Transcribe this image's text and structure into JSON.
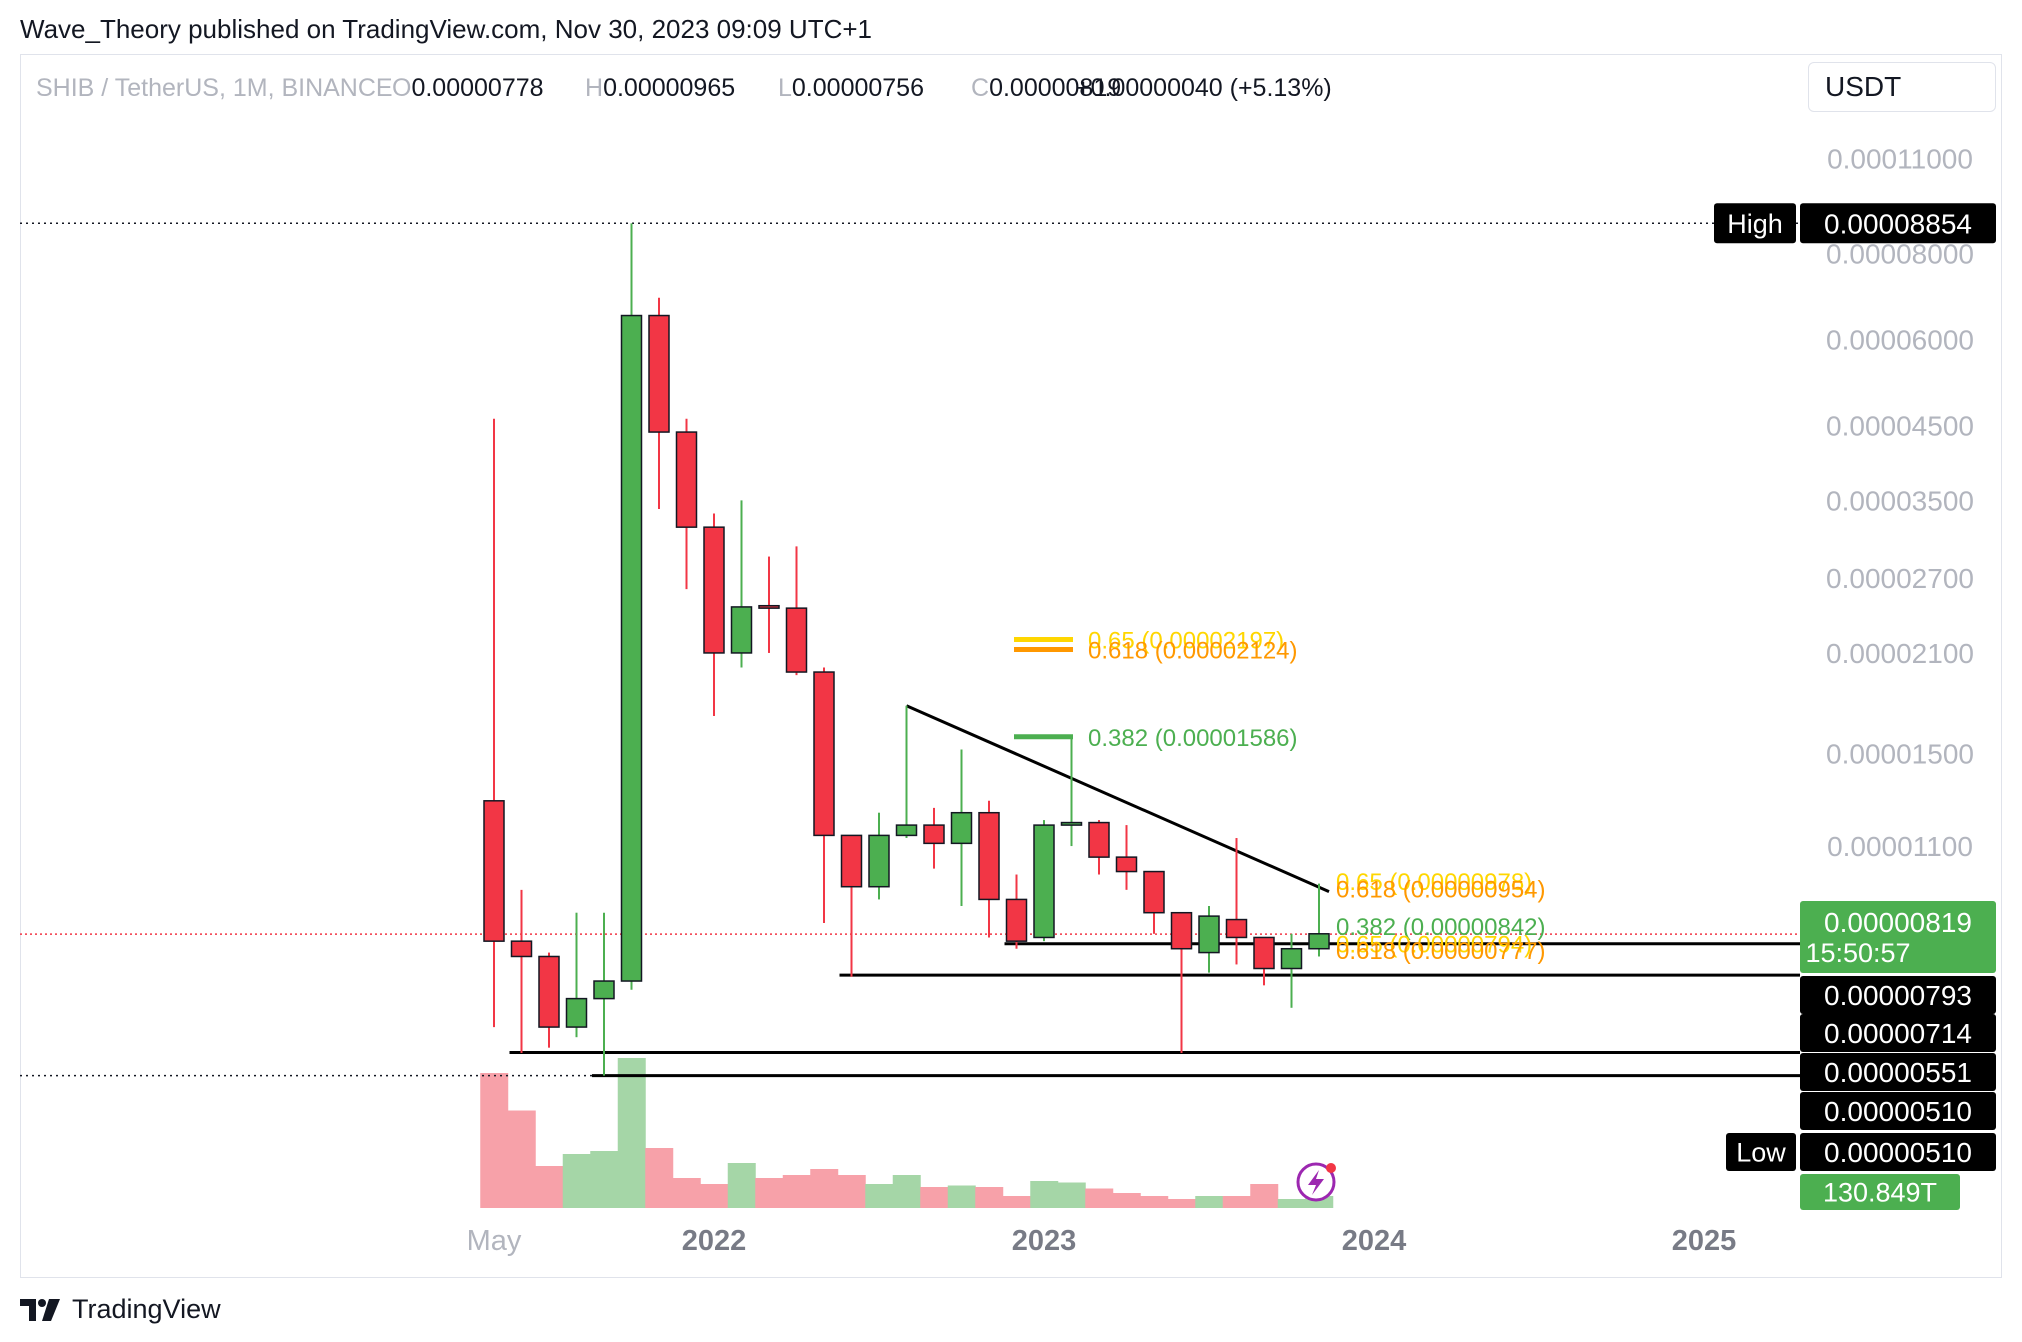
{
  "header": {
    "publisher_line": "Wave_Theory published on TradingView.com, Nov 30, 2023 09:09 UTC+1"
  },
  "legend": {
    "symbol": "SHIB / TetherUS, 1M, BINANCE",
    "o_label": "O",
    "o_value": "0.00000778",
    "h_label": "H",
    "h_value": "0.00000965",
    "l_label": "L",
    "l_value": "0.00000756",
    "c_label": "C",
    "c_value": "0.00000819",
    "change": "+0.00000040 (+5.13%)"
  },
  "currency": "USDT",
  "footer": {
    "brand": "TradingView"
  },
  "colors": {
    "up": "#4caf50",
    "down": "#f23645",
    "up_vol": "#a5d6a7",
    "down_vol": "#f7a1a9",
    "fib_yellow": "#ffd600",
    "fib_orange": "#ff9800",
    "fib_green": "#4caf50",
    "line": "#000000"
  },
  "chart_data": {
    "type": "candlestick",
    "price_scale": "log",
    "ylim": [
      4.7e-06,
      0.000117
    ],
    "y_ticks": [
      "0.00011000",
      "0.00008000",
      "0.00006000",
      "0.00004500",
      "0.00003500",
      "0.00002700",
      "0.00002100",
      "0.00001500",
      "0.00001100"
    ],
    "x_ticks": [
      {
        "label": "May",
        "date": "2021-05",
        "minor": true
      },
      {
        "label": "2022",
        "date": "2022-01"
      },
      {
        "label": "2023",
        "date": "2023-01"
      },
      {
        "label": "2024",
        "date": "2024-01"
      },
      {
        "label": "2025",
        "date": "2025-01"
      }
    ],
    "candles": [
      {
        "t": "2021-05",
        "o": 1.28e-05,
        "h": 4.6e-05,
        "l": 6e-06,
        "c": 8e-06
      },
      {
        "t": "2021-06",
        "o": 8e-06,
        "h": 9.5e-06,
        "l": 5.5e-06,
        "c": 7.6e-06
      },
      {
        "t": "2021-07",
        "o": 7.6e-06,
        "h": 7.7e-06,
        "l": 5.6e-06,
        "c": 6e-06
      },
      {
        "t": "2021-08",
        "o": 6e-06,
        "h": 8.8e-06,
        "l": 5.8e-06,
        "c": 6.6e-06
      },
      {
        "t": "2021-09",
        "o": 6.6e-06,
        "h": 8.8e-06,
        "l": 5.1e-06,
        "c": 7e-06
      },
      {
        "t": "2021-10",
        "o": 7e-06,
        "h": 8.85e-05,
        "l": 6.8e-06,
        "c": 6.5e-05
      },
      {
        "t": "2021-11",
        "o": 6.5e-05,
        "h": 6.9e-05,
        "l": 3.4e-05,
        "c": 4.4e-05
      },
      {
        "t": "2021-12",
        "o": 4.4e-05,
        "h": 4.6e-05,
        "l": 2.6e-05,
        "c": 3.2e-05
      },
      {
        "t": "2022-01",
        "o": 3.2e-05,
        "h": 3.35e-05,
        "l": 1.7e-05,
        "c": 2.1e-05
      },
      {
        "t": "2022-02",
        "o": 2.1e-05,
        "h": 3.5e-05,
        "l": 2e-05,
        "c": 2.45e-05
      },
      {
        "t": "2022-03",
        "o": 2.46e-05,
        "h": 2.9e-05,
        "l": 2.1e-05,
        "c": 2.44e-05
      },
      {
        "t": "2022-04",
        "o": 2.44e-05,
        "h": 3e-05,
        "l": 1.95e-05,
        "c": 1.97e-05
      },
      {
        "t": "2022-05",
        "o": 1.97e-05,
        "h": 2e-05,
        "l": 8.5e-06,
        "c": 1.14e-05
      },
      {
        "t": "2022-06",
        "o": 1.14e-05,
        "h": 1.14e-05,
        "l": 7.1e-06,
        "c": 9.6e-06
      },
      {
        "t": "2022-07",
        "o": 9.6e-06,
        "h": 1.23e-05,
        "l": 9.2e-06,
        "c": 1.14e-05
      },
      {
        "t": "2022-08",
        "o": 1.14e-05,
        "h": 1.76e-05,
        "l": 1.13e-05,
        "c": 1.18e-05
      },
      {
        "t": "2022-09",
        "o": 1.18e-05,
        "h": 1.25e-05,
        "l": 1.02e-05,
        "c": 1.11e-05
      },
      {
        "t": "2022-10",
        "o": 1.11e-05,
        "h": 1.52e-05,
        "l": 9e-06,
        "c": 1.23e-05
      },
      {
        "t": "2022-11",
        "o": 1.23e-05,
        "h": 1.28e-05,
        "l": 8.1e-06,
        "c": 9.2e-06
      },
      {
        "t": "2022-12",
        "o": 9.2e-06,
        "h": 1e-05,
        "l": 7.8e-06,
        "c": 8e-06
      },
      {
        "t": "2023-01",
        "o": 8.1e-06,
        "h": 1.2e-05,
        "l": 8e-06,
        "c": 1.18e-05
      },
      {
        "t": "2023-02",
        "o": 1.18e-05,
        "h": 1.59e-05,
        "l": 1.1e-05,
        "c": 1.19e-05
      },
      {
        "t": "2023-03",
        "o": 1.19e-05,
        "h": 1.2e-05,
        "l": 1e-05,
        "c": 1.06e-05
      },
      {
        "t": "2023-04",
        "o": 1.06e-05,
        "h": 1.18e-05,
        "l": 9.5e-06,
        "c": 1.01e-05
      },
      {
        "t": "2023-05",
        "o": 1.01e-05,
        "h": 1.01e-05,
        "l": 8.2e-06,
        "c": 8.8e-06
      },
      {
        "t": "2023-06",
        "o": 8.8e-06,
        "h": 8.8e-06,
        "l": 5.5e-06,
        "c": 7.8e-06
      },
      {
        "t": "2023-07",
        "o": 7.7e-06,
        "h": 9e-06,
        "l": 7.2e-06,
        "c": 8.7e-06
      },
      {
        "t": "2023-08",
        "o": 8.6e-06,
        "h": 1.13e-05,
        "l": 7.4e-06,
        "c": 8.1e-06
      },
      {
        "t": "2023-09",
        "o": 8.1e-06,
        "h": 8.1e-06,
        "l": 6.9e-06,
        "c": 7.3e-06
      },
      {
        "t": "2023-10",
        "o": 7.3e-06,
        "h": 8.2e-06,
        "l": 6.4e-06,
        "c": 7.8e-06
      },
      {
        "t": "2023-11",
        "o": 7.8e-06,
        "h": 9.7e-06,
        "l": 7.6e-06,
        "c": 8.2e-06
      }
    ],
    "volume": [
      0.9,
      0.65,
      0.28,
      0.36,
      0.38,
      1.0,
      0.4,
      0.2,
      0.16,
      0.3,
      0.2,
      0.22,
      0.26,
      0.22,
      0.16,
      0.22,
      0.14,
      0.15,
      0.14,
      0.08,
      0.18,
      0.17,
      0.13,
      0.1,
      0.08,
      0.06,
      0.08,
      0.08,
      0.16,
      0.06,
      0.08
    ],
    "trendline": {
      "from": {
        "t": "2022-08",
        "p": 1.76e-05
      },
      "to": {
        "t": "2023-11",
        "p": 9.7e-06
      }
    },
    "horizontal_levels": [
      {
        "from": "2022-12",
        "p": 7.93e-06
      },
      {
        "from": "2022-06",
        "p": 7.14e-06
      },
      {
        "from": "2021-06",
        "p": 5.51e-06
      },
      {
        "from": "2021-09",
        "p": 5.1e-06
      }
    ],
    "dotted_levels": [
      {
        "name": "High",
        "p": 8.854e-05
      },
      {
        "name": "Low",
        "p": 5.1e-06
      },
      {
        "name": "Last",
        "p": 8.19e-06
      }
    ],
    "fib_upper": [
      {
        "label": "0.65 (0.00002197)",
        "p": 2.197e-05,
        "color": "#ffd600",
        "from": "2023-03",
        "to": "2023-04"
      },
      {
        "label": "0.618 (0.00002124)",
        "p": 2.124e-05,
        "color": "#ff9800",
        "from": "2023-03",
        "to": "2023-04"
      },
      {
        "label": "0.382 (0.00001586)",
        "p": 1.586e-05,
        "color": "#4caf50",
        "from": "2023-03",
        "to": "2023-04"
      }
    ],
    "fib_lower": [
      {
        "label": "0.65 (0.00000978)",
        "p": 9.78e-06,
        "color": "#ffd600"
      },
      {
        "label": "0.618 (0.00000954)",
        "p": 9.54e-06,
        "color": "#ff9800"
      },
      {
        "label": "0.382 (0.00000842)",
        "p": 8.42e-06,
        "color": "#4caf50"
      },
      {
        "label": "0.65 (0.00000794)",
        "p": 7.94e-06,
        "color": "#ffd600"
      },
      {
        "label": "0.618 (0.00000777)",
        "p": 7.77e-06,
        "color": "#ff9800"
      }
    ],
    "axis_labels": {
      "high_tag": "High",
      "high_value": "0.00008854",
      "low_tag": "Low",
      "low_value": "0.00000510",
      "last_value": "0.00000819",
      "countdown": "15:50:57",
      "level_values": [
        "0.00000793",
        "0.00000714",
        "0.00000551",
        "0.00000510"
      ],
      "volume_value": "130.849T"
    }
  }
}
